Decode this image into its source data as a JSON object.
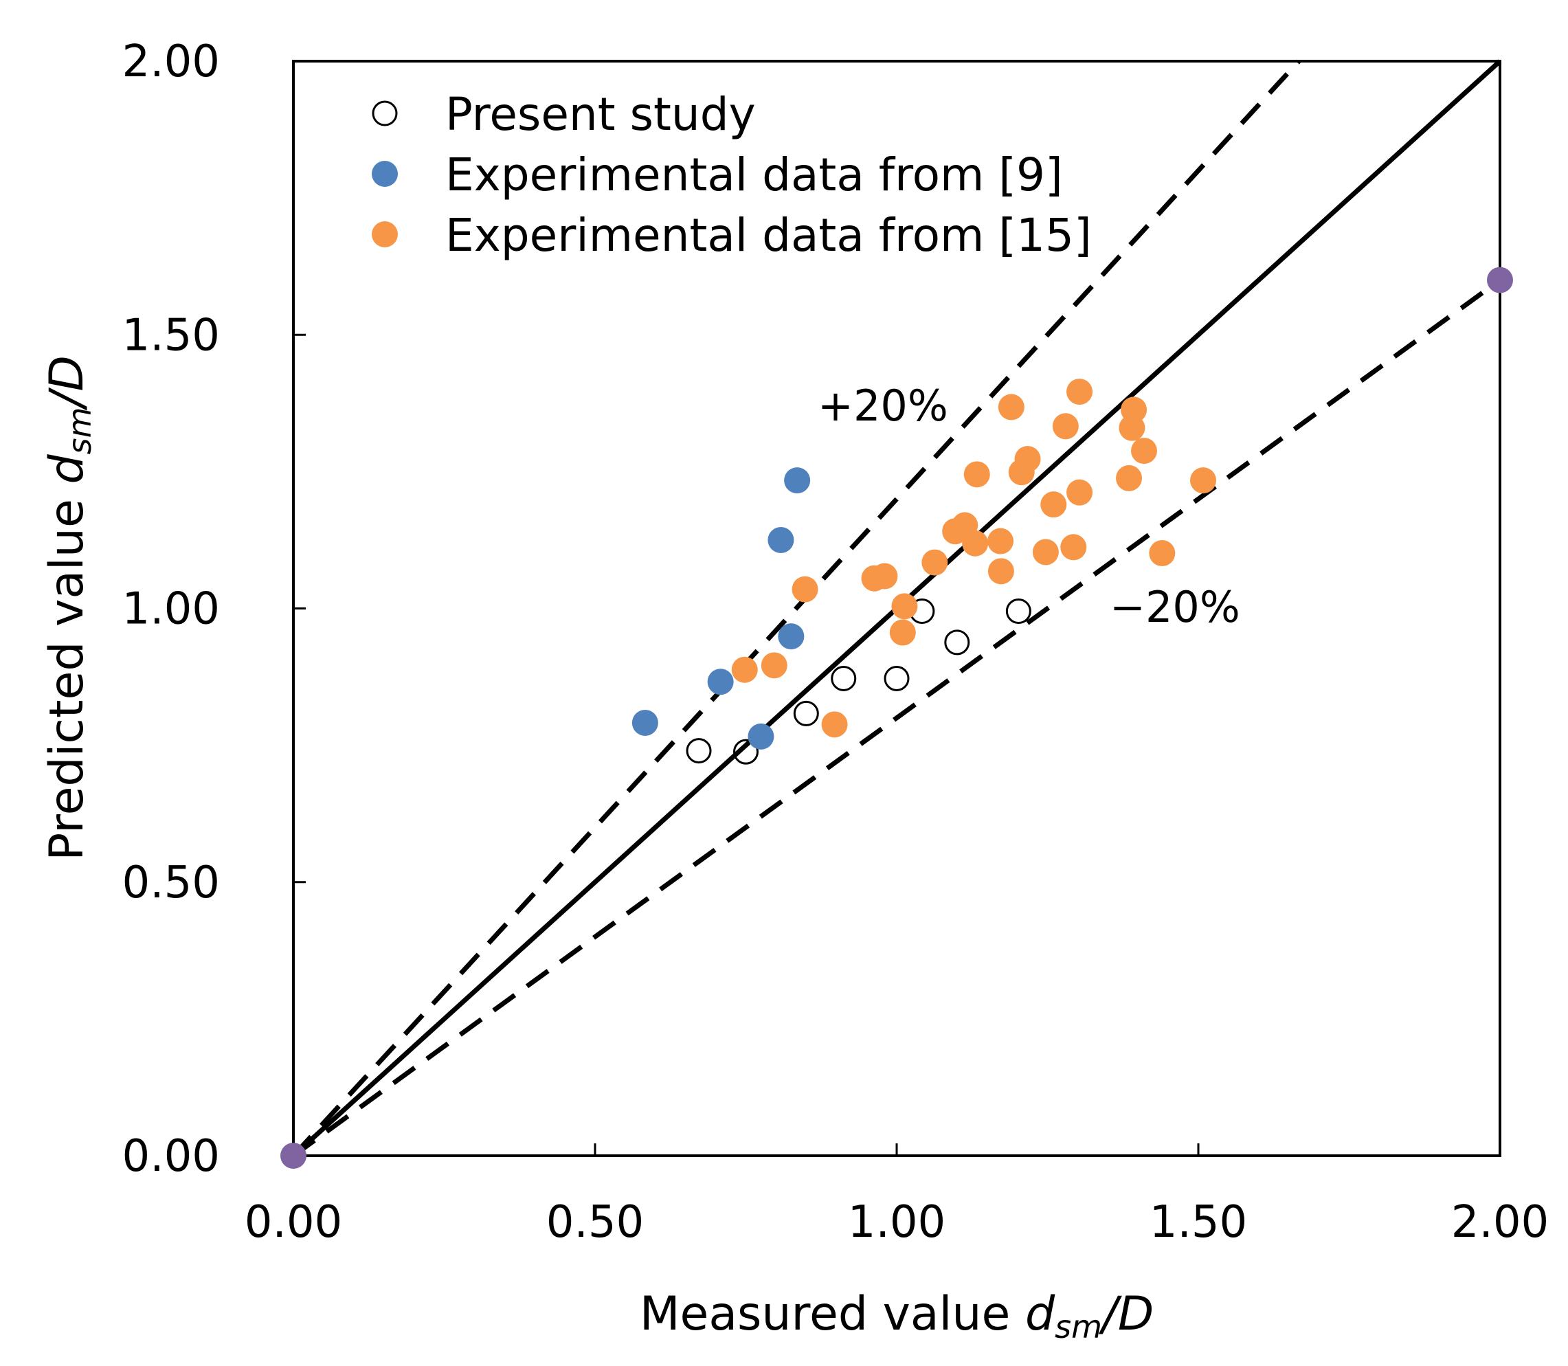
{
  "chart_data": {
    "type": "scatter",
    "xlabel": "Measured value d_sm/D",
    "ylabel": "Predicted value d_sm/D",
    "xlabel_parts": {
      "prefix": "Measured value ",
      "var": "d",
      "sub": "sm",
      "suffix": "/D"
    },
    "ylabel_parts": {
      "prefix": "Predicted value ",
      "var": "d",
      "sub": "sm",
      "suffix": "/D"
    },
    "xlim": [
      0,
      2
    ],
    "ylim": [
      0,
      2
    ],
    "xticks": [
      "0.00",
      "0.50",
      "1.00",
      "1.50",
      "2.00"
    ],
    "yticks": [
      "0.00",
      "0.50",
      "1.00",
      "1.50",
      "2.00"
    ],
    "grid": false,
    "legend_placement": "top-left",
    "reference_lines": [
      {
        "name": "y=x",
        "slope": 1.0,
        "style": "solid"
      },
      {
        "name": "+20%",
        "slope": 1.2,
        "style": "dashed",
        "label": "+20%"
      },
      {
        "name": "-20%",
        "slope": 0.8,
        "style": "dashed",
        "label": "−20%"
      }
    ],
    "series": [
      {
        "name": "Present study",
        "marker": "open-circle",
        "color": "#000000",
        "x": [
          0.672,
          0.75,
          0.85,
          0.912,
          1.0,
          1.042,
          1.1,
          1.202
        ],
        "y": [
          0.74,
          0.738,
          0.808,
          0.872,
          0.872,
          0.995,
          0.938,
          0.995
        ]
      },
      {
        "name": "Experimental data from [9]",
        "marker": "filled-circle",
        "color": "#4f81bd",
        "x": [
          0.583,
          0.708,
          0.775,
          0.825,
          0.808,
          0.835
        ],
        "y": [
          0.791,
          0.866,
          0.766,
          0.949,
          1.125,
          1.234
        ]
      },
      {
        "name": "Experimental data from [15]",
        "marker": "filled-circle",
        "color": "#f79646",
        "x": [
          0.748,
          0.797,
          0.848,
          0.897,
          0.963,
          0.98,
          1.013,
          1.01,
          1.063,
          1.097,
          1.113,
          1.13,
          1.133,
          1.172,
          1.173,
          1.19,
          1.207,
          1.217,
          1.247,
          1.26,
          1.28,
          1.293,
          1.303,
          1.303,
          1.393,
          1.39,
          1.385,
          1.41,
          1.44,
          1.508
        ],
        "y": [
          0.888,
          0.896,
          1.035,
          0.788,
          1.055,
          1.059,
          1.004,
          0.956,
          1.084,
          1.141,
          1.152,
          1.119,
          1.245,
          1.123,
          1.068,
          1.368,
          1.249,
          1.273,
          1.103,
          1.19,
          1.333,
          1.112,
          1.212,
          1.396,
          1.363,
          1.33,
          1.238,
          1.288,
          1.101,
          1.234
        ]
      },
      {
        "name": "endpoints",
        "marker": "filled-circle",
        "color": "#8064a2",
        "legend": false,
        "x": [
          0,
          2
        ],
        "y": [
          0,
          1.6
        ]
      }
    ]
  }
}
